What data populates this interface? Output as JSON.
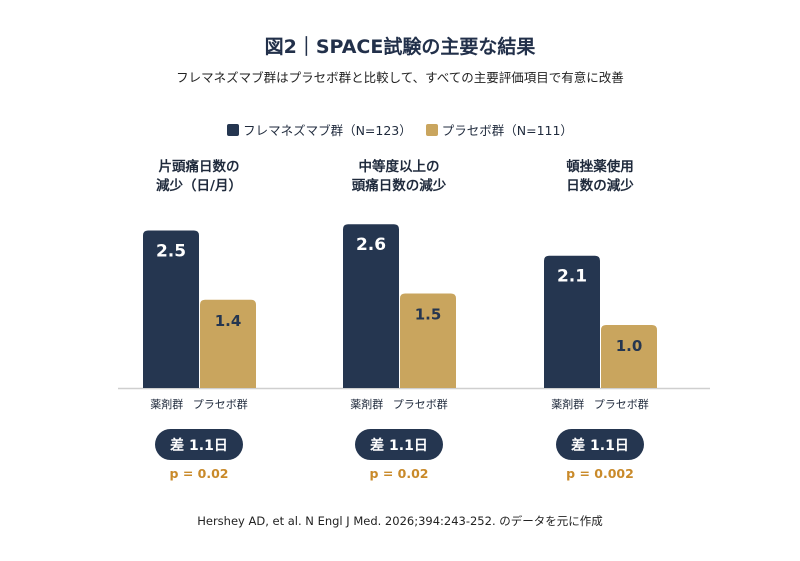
{
  "chart_data": {
    "type": "bar",
    "title": "図2｜SPACE試験の主要な結果",
    "subtitle": "フレマネズマブ群はプラセボ群と比較して、すべての主要評価項目で有意に改善",
    "legend": {
      "placement": "top",
      "entries": [
        "フレマネズマブ群（N=123）",
        "プラセボ群（N=111）"
      ]
    },
    "series": [
      {
        "name": "フレマネズマブ群（N=123）",
        "color": "#253650",
        "values": [
          2.5,
          2.6,
          2.1
        ]
      },
      {
        "name": "プラセボ群（N=111）",
        "color": "#c9a55e",
        "values": [
          1.4,
          1.5,
          1.0
        ]
      }
    ],
    "groups": [
      {
        "label": [
          "片頭痛日数の",
          "減少（日/月）"
        ],
        "x_labels": [
          "薬剤群",
          "プラセボ群"
        ],
        "diff": "差 1.1日",
        "p": "p = 0.02"
      },
      {
        "label": [
          "中等度以上の",
          "頭痛日数の減少"
        ],
        "x_labels": [
          "薬剤群",
          "プラセボ群"
        ],
        "diff": "差 1.1日",
        "p": "p = 0.02"
      },
      {
        "label": [
          "頓挫薬使用",
          "日数の減少"
        ],
        "x_labels": [
          "薬剤群",
          "プラセボ群"
        ],
        "diff": "差 1.1日",
        "p": "p = 0.002"
      }
    ],
    "ylim": [
      0,
      2.6
    ],
    "grid": false,
    "p_color": "#c98a2a",
    "source": "Hershey AD, et al. N Engl J Med. 2026;394:243-252. のデータを元に作成"
  }
}
